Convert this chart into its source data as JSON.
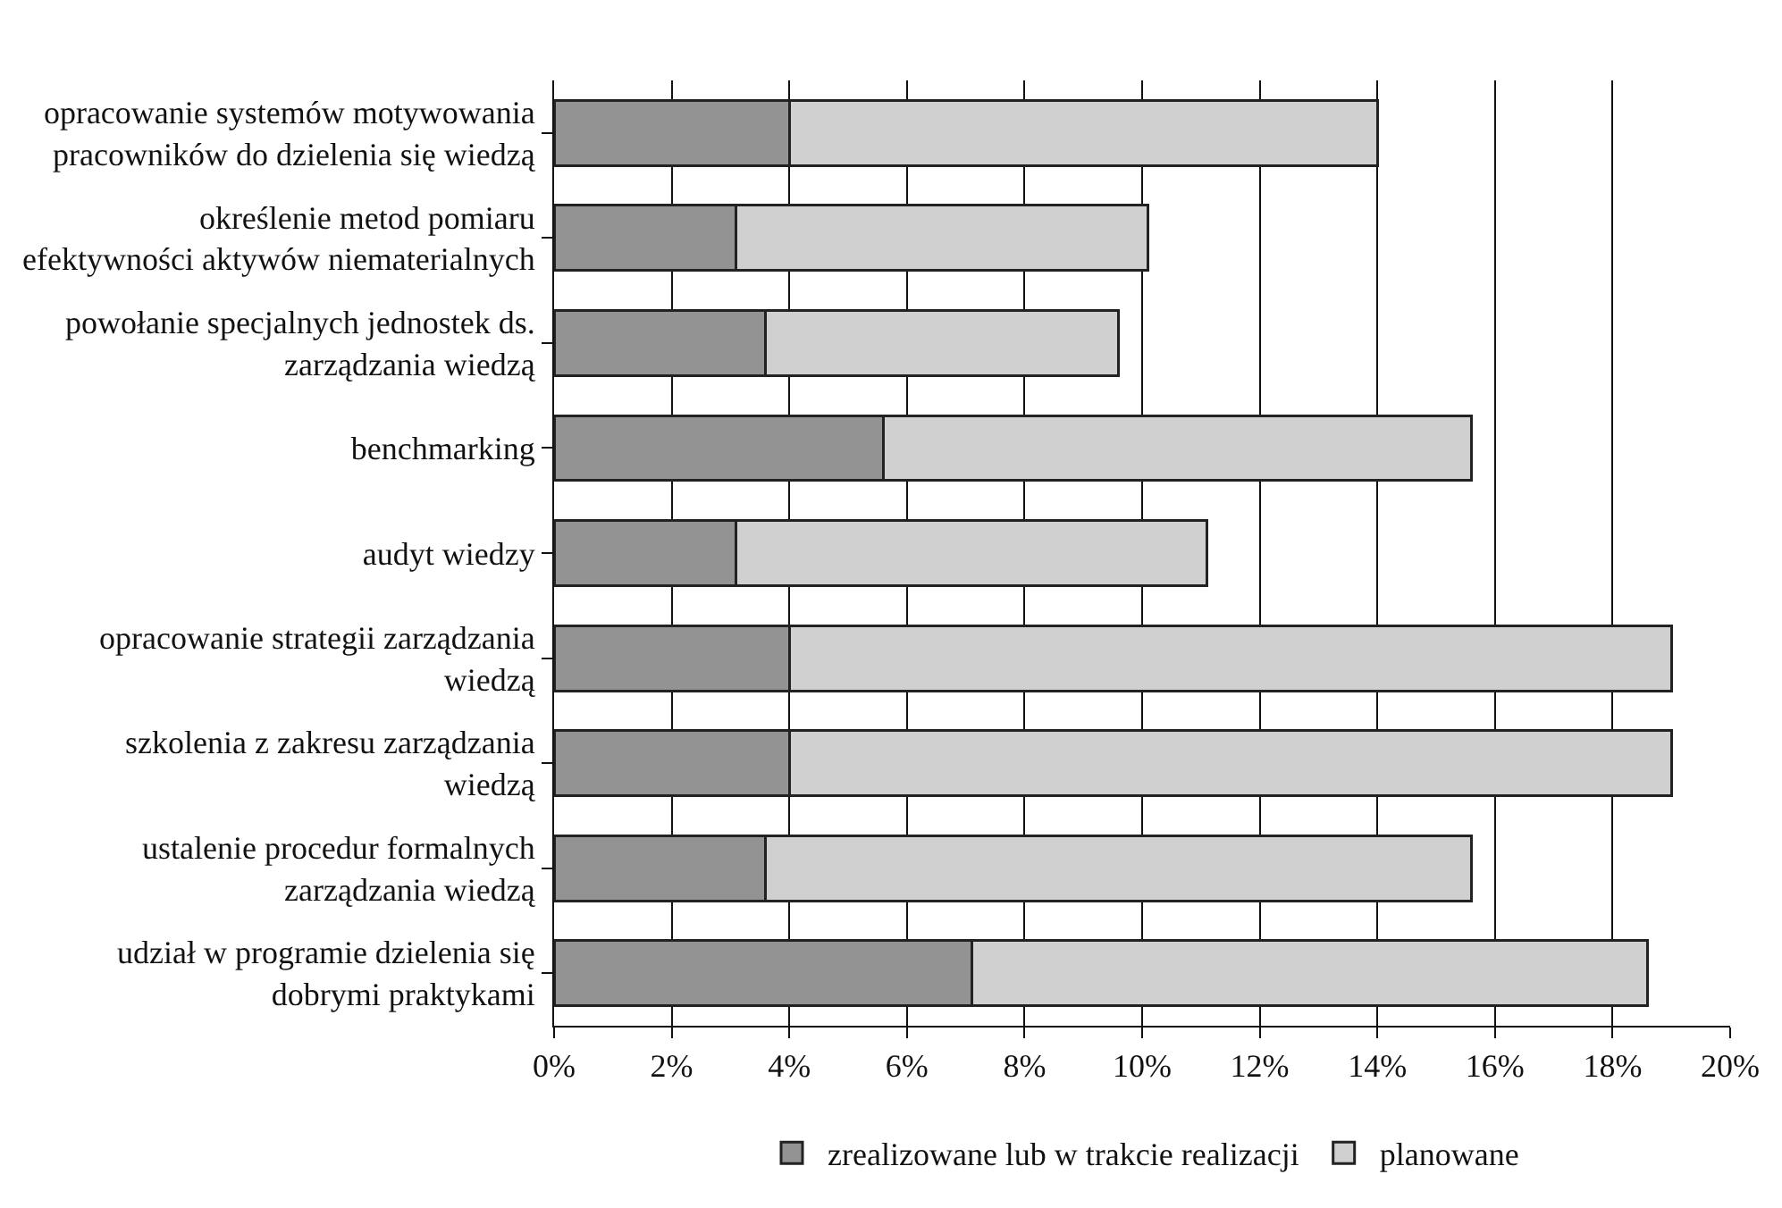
{
  "chart_data": {
    "type": "bar",
    "orientation": "horizontal",
    "stacked": true,
    "categories": [
      "opracowanie systemów motywowania pracowników do dzielenia się wiedzą",
      "określenie metod pomiaru efektywności aktywów niematerialnych",
      "powołanie specjalnych jednostek ds. zarządzania wiedzą",
      "benchmarking",
      "audyt wiedzy",
      "opracowanie strategii zarządzania wiedzą",
      "szkolenia z zakresu zarządzania wiedzą",
      "ustalenie procedur formalnych zarządzania wiedzą",
      "udział w programie dzielenia się dobrymi praktykami"
    ],
    "series": [
      {
        "name": "zrealizowane lub w trakcie realizacji",
        "color": "#939393",
        "values": [
          4.0,
          3.1,
          3.6,
          5.6,
          3.1,
          4.0,
          4.0,
          3.6,
          7.1
        ]
      },
      {
        "name": "planowane",
        "color": "#d0d0d0",
        "values": [
          10.0,
          7.0,
          6.0,
          10.0,
          8.0,
          15.0,
          15.0,
          12.0,
          11.5
        ]
      }
    ],
    "xlim": [
      0,
      20
    ],
    "xticks": [
      {
        "value": 0,
        "label": "0%"
      },
      {
        "value": 2,
        "label": "2%"
      },
      {
        "value": 4,
        "label": "4%"
      },
      {
        "value": 6,
        "label": "6%"
      },
      {
        "value": 8,
        "label": "8%"
      },
      {
        "value": 10,
        "label": "10%"
      },
      {
        "value": 12,
        "label": "12%"
      },
      {
        "value": 14,
        "label": "14%"
      },
      {
        "value": 16,
        "label": "16%"
      },
      {
        "value": 18,
        "label": "18%"
      },
      {
        "value": 20,
        "label": "20%"
      }
    ],
    "grid": "x",
    "legend": "bottom"
  }
}
